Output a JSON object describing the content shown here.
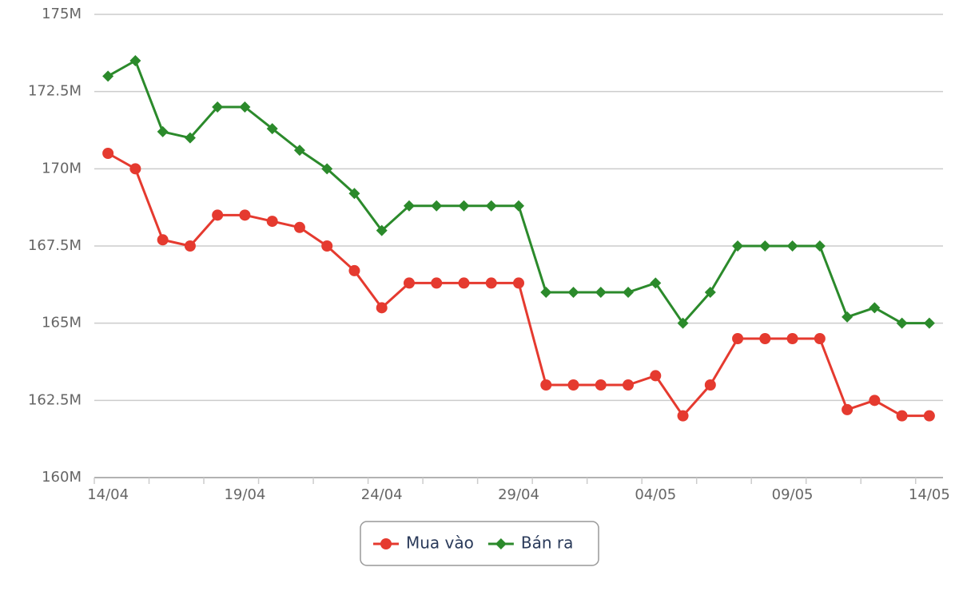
{
  "chart_data": {
    "type": "line",
    "categories": [
      "14/04",
      null,
      null,
      null,
      null,
      "19/04",
      null,
      null,
      null,
      null,
      "24/04",
      null,
      null,
      null,
      null,
      "29/04",
      null,
      null,
      null,
      null,
      "04/05",
      null,
      null,
      null,
      null,
      "09/05",
      null,
      null,
      null,
      null,
      "14/05"
    ],
    "series": [
      {
        "name": "Mua vào",
        "color": "#e53a2f",
        "marker": "circle",
        "values": [
          170.5,
          170.0,
          167.7,
          167.5,
          168.5,
          168.5,
          168.3,
          168.1,
          167.5,
          166.7,
          165.5,
          166.3,
          166.3,
          166.3,
          166.3,
          166.3,
          163.0,
          163.0,
          163.0,
          163.0,
          163.3,
          162.0,
          163.0,
          164.5,
          164.5,
          164.5,
          164.5,
          162.2,
          162.5,
          162.0,
          162.0
        ]
      },
      {
        "name": "Bán ra",
        "color": "#2b8a2b",
        "marker": "diamond",
        "values": [
          173.0,
          173.5,
          171.2,
          171.0,
          172.0,
          172.0,
          171.3,
          170.6,
          170.0,
          169.2,
          168.0,
          168.8,
          168.8,
          168.8,
          168.8,
          168.8,
          166.0,
          166.0,
          166.0,
          166.0,
          166.3,
          165.0,
          166.0,
          167.5,
          167.5,
          167.5,
          167.5,
          165.2,
          165.5,
          165.0,
          165.0
        ]
      }
    ],
    "ylim": [
      160,
      175
    ],
    "yticks": [
      {
        "value": 160,
        "label": "160M"
      },
      {
        "value": 162.5,
        "label": "162.5M"
      },
      {
        "value": 165,
        "label": "165M"
      },
      {
        "value": 167.5,
        "label": "167.5M"
      },
      {
        "value": 170,
        "label": "170M"
      },
      {
        "value": 172.5,
        "label": "172.5M"
      },
      {
        "value": 175,
        "label": "175M"
      }
    ],
    "grid": true
  }
}
